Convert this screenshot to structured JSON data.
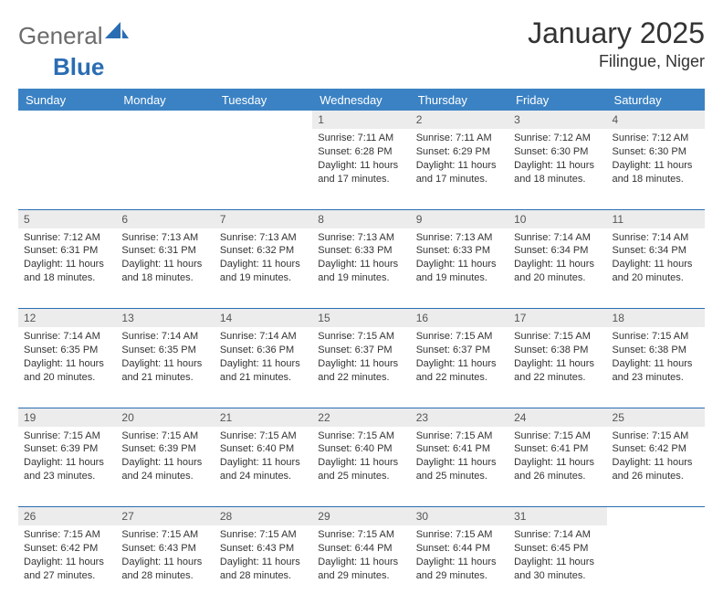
{
  "logo": {
    "part1": "General",
    "part2": "Blue"
  },
  "title": "January 2025",
  "location": "Filingue, Niger",
  "colors": {
    "header_bg": "#3b82c4",
    "header_text": "#ffffff",
    "daynum_bg": "#ececec",
    "rule": "#2a6db3",
    "logo_gray": "#6b6b6b",
    "logo_blue": "#2a6db3"
  },
  "day_headers": [
    "Sunday",
    "Monday",
    "Tuesday",
    "Wednesday",
    "Thursday",
    "Friday",
    "Saturday"
  ],
  "weeks": [
    [
      null,
      null,
      null,
      {
        "n": "1",
        "sr": "7:11 AM",
        "ss": "6:28 PM",
        "dl": "11 hours and 17 minutes."
      },
      {
        "n": "2",
        "sr": "7:11 AM",
        "ss": "6:29 PM",
        "dl": "11 hours and 17 minutes."
      },
      {
        "n": "3",
        "sr": "7:12 AM",
        "ss": "6:30 PM",
        "dl": "11 hours and 18 minutes."
      },
      {
        "n": "4",
        "sr": "7:12 AM",
        "ss": "6:30 PM",
        "dl": "11 hours and 18 minutes."
      }
    ],
    [
      {
        "n": "5",
        "sr": "7:12 AM",
        "ss": "6:31 PM",
        "dl": "11 hours and 18 minutes."
      },
      {
        "n": "6",
        "sr": "7:13 AM",
        "ss": "6:31 PM",
        "dl": "11 hours and 18 minutes."
      },
      {
        "n": "7",
        "sr": "7:13 AM",
        "ss": "6:32 PM",
        "dl": "11 hours and 19 minutes."
      },
      {
        "n": "8",
        "sr": "7:13 AM",
        "ss": "6:33 PM",
        "dl": "11 hours and 19 minutes."
      },
      {
        "n": "9",
        "sr": "7:13 AM",
        "ss": "6:33 PM",
        "dl": "11 hours and 19 minutes."
      },
      {
        "n": "10",
        "sr": "7:14 AM",
        "ss": "6:34 PM",
        "dl": "11 hours and 20 minutes."
      },
      {
        "n": "11",
        "sr": "7:14 AM",
        "ss": "6:34 PM",
        "dl": "11 hours and 20 minutes."
      }
    ],
    [
      {
        "n": "12",
        "sr": "7:14 AM",
        "ss": "6:35 PM",
        "dl": "11 hours and 20 minutes."
      },
      {
        "n": "13",
        "sr": "7:14 AM",
        "ss": "6:35 PM",
        "dl": "11 hours and 21 minutes."
      },
      {
        "n": "14",
        "sr": "7:14 AM",
        "ss": "6:36 PM",
        "dl": "11 hours and 21 minutes."
      },
      {
        "n": "15",
        "sr": "7:15 AM",
        "ss": "6:37 PM",
        "dl": "11 hours and 22 minutes."
      },
      {
        "n": "16",
        "sr": "7:15 AM",
        "ss": "6:37 PM",
        "dl": "11 hours and 22 minutes."
      },
      {
        "n": "17",
        "sr": "7:15 AM",
        "ss": "6:38 PM",
        "dl": "11 hours and 22 minutes."
      },
      {
        "n": "18",
        "sr": "7:15 AM",
        "ss": "6:38 PM",
        "dl": "11 hours and 23 minutes."
      }
    ],
    [
      {
        "n": "19",
        "sr": "7:15 AM",
        "ss": "6:39 PM",
        "dl": "11 hours and 23 minutes."
      },
      {
        "n": "20",
        "sr": "7:15 AM",
        "ss": "6:39 PM",
        "dl": "11 hours and 24 minutes."
      },
      {
        "n": "21",
        "sr": "7:15 AM",
        "ss": "6:40 PM",
        "dl": "11 hours and 24 minutes."
      },
      {
        "n": "22",
        "sr": "7:15 AM",
        "ss": "6:40 PM",
        "dl": "11 hours and 25 minutes."
      },
      {
        "n": "23",
        "sr": "7:15 AM",
        "ss": "6:41 PM",
        "dl": "11 hours and 25 minutes."
      },
      {
        "n": "24",
        "sr": "7:15 AM",
        "ss": "6:41 PM",
        "dl": "11 hours and 26 minutes."
      },
      {
        "n": "25",
        "sr": "7:15 AM",
        "ss": "6:42 PM",
        "dl": "11 hours and 26 minutes."
      }
    ],
    [
      {
        "n": "26",
        "sr": "7:15 AM",
        "ss": "6:42 PM",
        "dl": "11 hours and 27 minutes."
      },
      {
        "n": "27",
        "sr": "7:15 AM",
        "ss": "6:43 PM",
        "dl": "11 hours and 28 minutes."
      },
      {
        "n": "28",
        "sr": "7:15 AM",
        "ss": "6:43 PM",
        "dl": "11 hours and 28 minutes."
      },
      {
        "n": "29",
        "sr": "7:15 AM",
        "ss": "6:44 PM",
        "dl": "11 hours and 29 minutes."
      },
      {
        "n": "30",
        "sr": "7:15 AM",
        "ss": "6:44 PM",
        "dl": "11 hours and 29 minutes."
      },
      {
        "n": "31",
        "sr": "7:14 AM",
        "ss": "6:45 PM",
        "dl": "11 hours and 30 minutes."
      },
      null
    ]
  ],
  "labels": {
    "sunrise": "Sunrise:",
    "sunset": "Sunset:",
    "daylight": "Daylight:"
  }
}
